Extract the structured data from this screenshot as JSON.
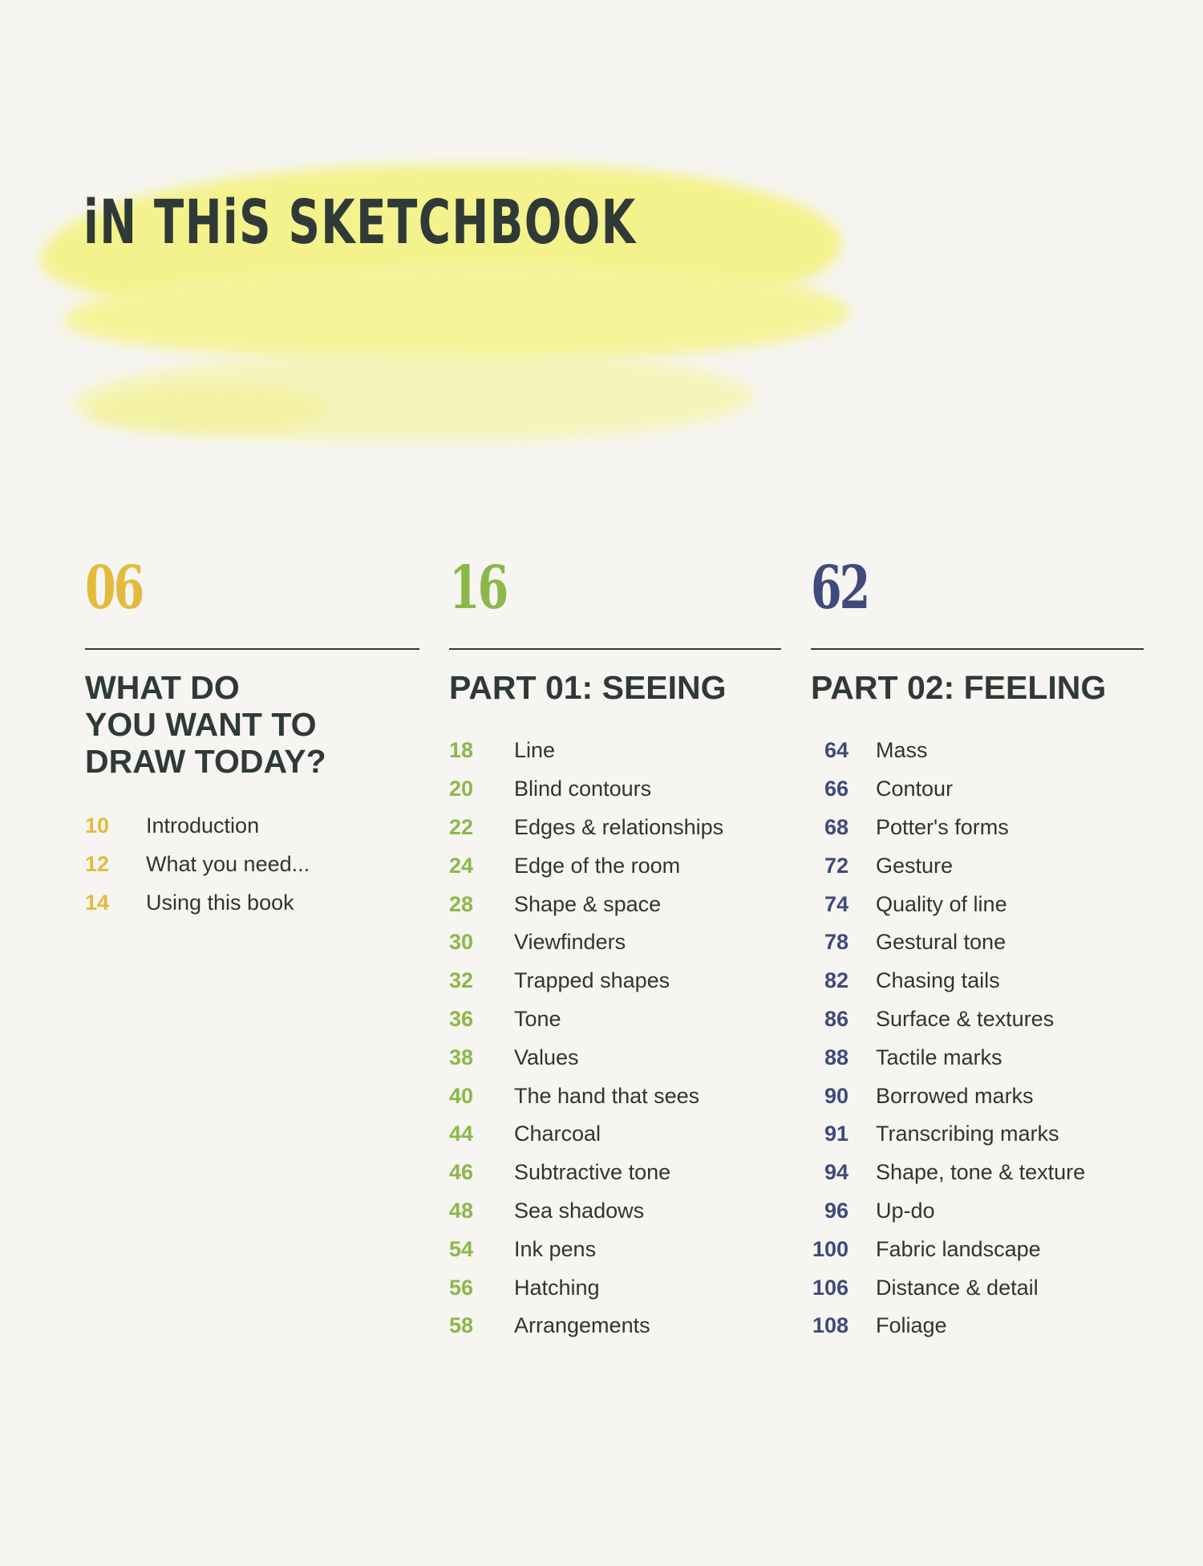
{
  "title": "iN THiS SKETCHBOOK",
  "colors": {
    "section1": "#e3bb3c",
    "section2": "#8cb84a",
    "section3": "#3f4a7d",
    "wash": "#f3f08a",
    "text": "#2f3a38"
  },
  "sections": [
    {
      "page": "06",
      "heading": [
        "WHAT DO",
        "YOU WANT TO",
        "DRAW TODAY?"
      ],
      "items": [
        {
          "page": "10",
          "label": "Introduction"
        },
        {
          "page": "12",
          "label": "What you need..."
        },
        {
          "page": "14",
          "label": "Using this book"
        }
      ]
    },
    {
      "page": "16",
      "heading": [
        "PART 01: SEEING"
      ],
      "items": [
        {
          "page": "18",
          "label": "Line"
        },
        {
          "page": "20",
          "label": "Blind contours"
        },
        {
          "page": "22",
          "label": "Edges & relationships"
        },
        {
          "page": "24",
          "label": "Edge of the room"
        },
        {
          "page": "28",
          "label": "Shape & space"
        },
        {
          "page": "30",
          "label": "Viewfinders"
        },
        {
          "page": "32",
          "label": "Trapped shapes"
        },
        {
          "page": "36",
          "label": "Tone"
        },
        {
          "page": "38",
          "label": "Values"
        },
        {
          "page": "40",
          "label": "The hand that sees"
        },
        {
          "page": "44",
          "label": "Charcoal"
        },
        {
          "page": "46",
          "label": "Subtractive tone"
        },
        {
          "page": "48",
          "label": "Sea shadows"
        },
        {
          "page": "54",
          "label": "Ink pens"
        },
        {
          "page": "56",
          "label": "Hatching"
        },
        {
          "page": "58",
          "label": "Arrangements"
        }
      ]
    },
    {
      "page": "62",
      "heading": [
        "PART 02: FEELING"
      ],
      "items": [
        {
          "page": "64",
          "label": "Mass"
        },
        {
          "page": "66",
          "label": "Contour"
        },
        {
          "page": "68",
          "label": "Potter's forms"
        },
        {
          "page": "72",
          "label": "Gesture"
        },
        {
          "page": "74",
          "label": "Quality of line"
        },
        {
          "page": "78",
          "label": "Gestural tone"
        },
        {
          "page": "82",
          "label": "Chasing tails"
        },
        {
          "page": "86",
          "label": "Surface & textures"
        },
        {
          "page": "88",
          "label": "Tactile marks"
        },
        {
          "page": "90",
          "label": "Borrowed marks"
        },
        {
          "page": "91",
          "label": "Transcribing marks"
        },
        {
          "page": "94",
          "label": "Shape, tone & texture"
        },
        {
          "page": "96",
          "label": "Up-do"
        },
        {
          "page": "100",
          "label": "Fabric landscape"
        },
        {
          "page": "106",
          "label": "Distance & detail"
        },
        {
          "page": "108",
          "label": "Foliage"
        }
      ]
    }
  ]
}
